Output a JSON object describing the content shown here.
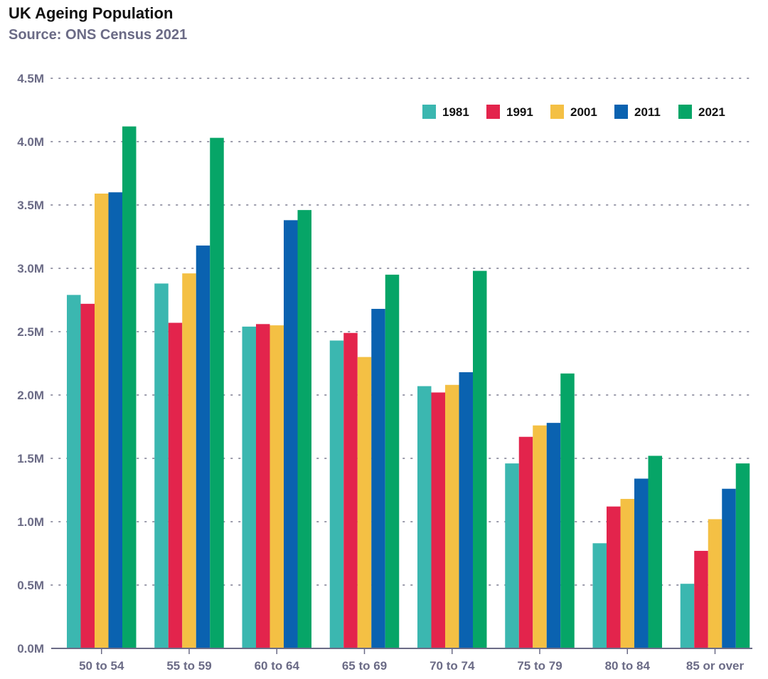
{
  "title": "UK Ageing Population",
  "subtitle": "Source: ONS Census 2021",
  "chart_data": {
    "type": "bar",
    "categories": [
      "50 to 54",
      "55 to 59",
      "60 to 64",
      "65 to 69",
      "70 to 74",
      "75 to 79",
      "80 to 84",
      "85 or over"
    ],
    "series": [
      {
        "name": "1981",
        "color": "#3bb7b0",
        "values": [
          2790000,
          2880000,
          2540000,
          2430000,
          2070000,
          1460000,
          830000,
          510000
        ]
      },
      {
        "name": "1991",
        "color": "#e3244c",
        "values": [
          2720000,
          2570000,
          2560000,
          2490000,
          2020000,
          1670000,
          1120000,
          770000
        ]
      },
      {
        "name": "2001",
        "color": "#f4c044",
        "values": [
          3590000,
          2960000,
          2550000,
          2300000,
          2080000,
          1760000,
          1180000,
          1020000
        ]
      },
      {
        "name": "2011",
        "color": "#0a62b0",
        "values": [
          3600000,
          3180000,
          3380000,
          2680000,
          2180000,
          1780000,
          1340000,
          1260000
        ]
      },
      {
        "name": "2021",
        "color": "#06a567",
        "values": [
          4120000,
          4030000,
          3460000,
          2950000,
          2980000,
          2170000,
          1520000,
          1460000
        ]
      }
    ],
    "yticks": [
      "0.0M",
      "0.5M",
      "1.0M",
      "1.5M",
      "2.0M",
      "2.5M",
      "3.0M",
      "3.5M",
      "4.0M",
      "4.5M"
    ],
    "ylim": [
      0,
      4500000
    ],
    "xlabel": "",
    "ylabel": "",
    "grid": true,
    "legend_position": "top-right"
  }
}
